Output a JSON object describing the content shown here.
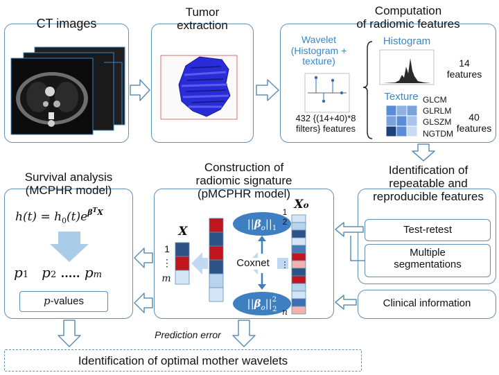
{
  "stages": {
    "ct": {
      "title": "CT images"
    },
    "tumor": {
      "title": "Tumor\nextraction"
    },
    "comp": {
      "title": "Computation\nof radiomic features",
      "wavelet": "Wavelet\n(Histogram +\ntexture)",
      "histogram": "Histogram",
      "hist_count": "14\nfeatures",
      "texture": "Texture",
      "texture_list": "GLCM\nGLRLM\nGLSZM\nNGTDM",
      "texture_count": "40\nfeatures",
      "wavelet_count": "432 {(14+40)*8\nfilters} features"
    },
    "ident": {
      "title": "Identification of\nrepeatable and\nreproducible features",
      "test_retest": "Test-retest",
      "multi_seg": "Multiple\nsegmentations"
    },
    "clinical": {
      "label": "Clinical information"
    },
    "signature": {
      "title": "Construction of\nradiomic signature\n(pMCPHR model)",
      "xo": "X",
      "xo_sub": "o",
      "x": "X",
      "coxnet": "Coxnet",
      "idx_1": "1",
      "idx_2": "2",
      "idx_dots": "⋮",
      "idx_n": "n",
      "x_idx_1": "1",
      "x_idx_dots": "⋮",
      "x_idx_m": "m"
    },
    "survival": {
      "title": "Survival analysis\n(MCPHR model)",
      "p1": "p",
      "p1_sub": "1",
      "p2": "p",
      "p2_sub": "2",
      "dots": ".....",
      "pm": "p",
      "pm_sub": "m",
      "pvalues_p": "p",
      "pvalues_rest": "-values"
    },
    "prediction_error": "Prediction error",
    "optimal": "Identification of optimal mother wavelets"
  },
  "colors": {
    "border": "#5f8fb4",
    "arrow_fill": "#ffffff",
    "arrow_stroke": "#5f8fb4",
    "ellipse": "#3d7fc1",
    "red": "#c0161e",
    "dark_blue": "#2e5386",
    "light_blue": "#b8d3ee",
    "pink": "#f0b3b0"
  }
}
